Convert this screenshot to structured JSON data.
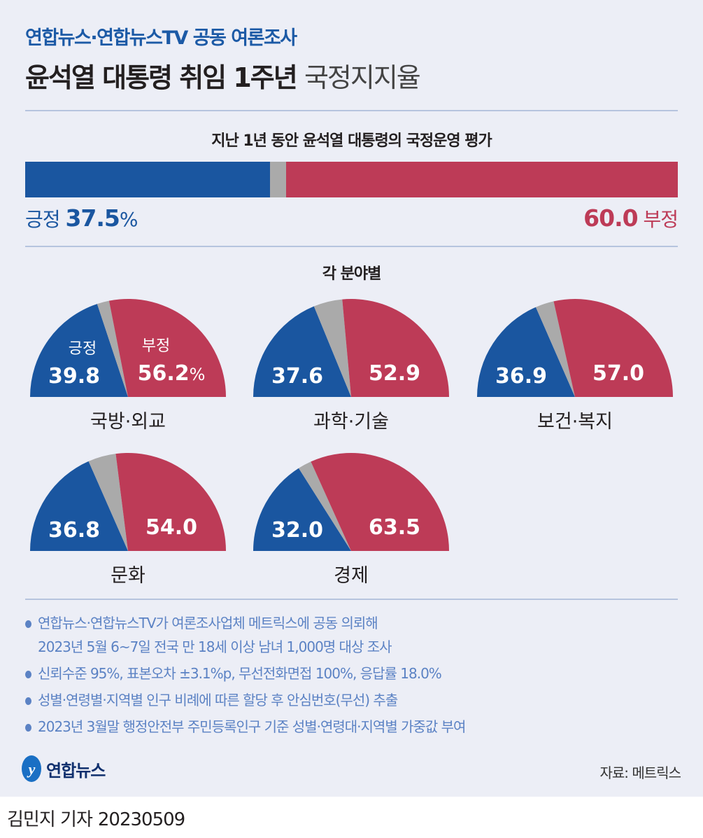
{
  "header": {
    "kicker": "연합뉴스·연합뉴스TV 공동 여론조사",
    "title": "윤석열 대통령 취임 1주년",
    "title_sub": "국정지지율"
  },
  "colors": {
    "positive": "#1a56a0",
    "negative": "#bd3b57",
    "other": "#aaaaaa",
    "background": "#eceef6"
  },
  "chart_data": [
    {
      "type": "bar",
      "title": "지난 1년 동안 윤석열 대통령의 국정운영 평가",
      "stacked": true,
      "series": [
        {
          "name": "긍정",
          "values": [
            37.5
          ]
        },
        {
          "name": "부정",
          "values": [
            60.0
          ]
        }
      ],
      "labels": {
        "positive_name": "긍정",
        "positive_value": "37.5",
        "unit": "%",
        "negative_name": "부정",
        "negative_value": "60.0"
      }
    },
    {
      "type": "pie",
      "shape": "semicircle",
      "title": "각 분야별",
      "legend": {
        "positive": "긍정",
        "negative": "부정",
        "unit": "%"
      },
      "categories": [
        "국방·외교",
        "과학·기술",
        "보건·복지",
        "문화",
        "경제"
      ],
      "series": [
        {
          "name": "긍정",
          "values": [
            39.8,
            37.6,
            36.9,
            36.8,
            32.0
          ]
        },
        {
          "name": "부정",
          "values": [
            56.2,
            52.9,
            57.0,
            54.0,
            63.5
          ]
        }
      ],
      "value_labels": {
        "positive": [
          "39.8",
          "37.6",
          "36.9",
          "36.8",
          "32.0"
        ],
        "negative": [
          "56.2",
          "52.9",
          "57.0",
          "54.0",
          "63.5"
        ]
      }
    }
  ],
  "notes": [
    "연합뉴스·연합뉴스TV가 여론조사업체 메트릭스에 공동 의뢰해\n2023년 5월 6~7일 전국 만 18세 이상 남녀 1,000명 대상 조사",
    "신뢰수준 95%, 표본오차 ±3.1%p, 무선전화면접 100%, 응답률 18.0%",
    "성별·연령별·지역별 인구 비례에 따른 할당 후 안심번호(무선) 추출",
    "2023년 3월말 행정안전부 주민등록인구 기준 성별·연령대·지역별 가중값 부여"
  ],
  "footer": {
    "logo": "연합뉴스",
    "source": "자료: 메트릭스",
    "author": "김민지 기자",
    "date": "20230509"
  }
}
